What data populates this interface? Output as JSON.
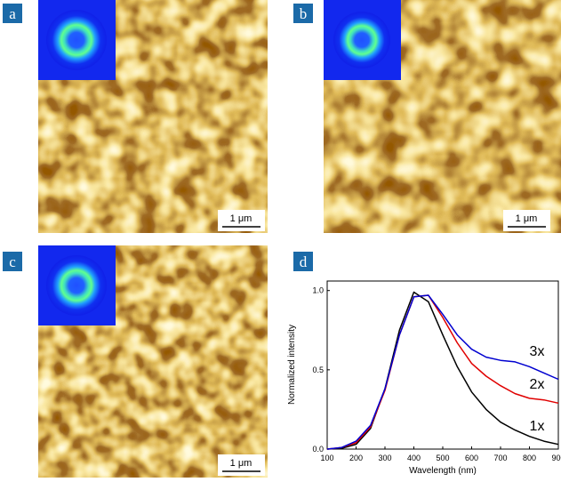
{
  "panels": [
    {
      "label": "a",
      "scale_bar": "1 μm"
    },
    {
      "label": "b",
      "scale_bar": "1 μm"
    },
    {
      "label": "c",
      "scale_bar": "1 μm"
    },
    {
      "label": "d"
    }
  ],
  "chart_data": {
    "type": "line",
    "xlabel": "Wavelength (nm)",
    "ylabel": "Normalized intensity",
    "x": [
      100,
      150,
      200,
      250,
      300,
      350,
      400,
      450,
      500,
      550,
      600,
      650,
      700,
      750,
      800,
      850,
      900
    ],
    "series": [
      {
        "name": "1x",
        "color": "#000000",
        "values": [
          0,
          0.005,
          0.03,
          0.13,
          0.38,
          0.75,
          0.99,
          0.93,
          0.72,
          0.52,
          0.36,
          0.25,
          0.17,
          0.12,
          0.08,
          0.05,
          0.03
        ]
      },
      {
        "name": "2x",
        "color": "#e00000",
        "values": [
          0,
          0.01,
          0.04,
          0.14,
          0.37,
          0.72,
          0.96,
          0.97,
          0.83,
          0.67,
          0.54,
          0.46,
          0.4,
          0.35,
          0.32,
          0.31,
          0.29
        ]
      },
      {
        "name": "3x",
        "color": "#0000d0",
        "values": [
          0,
          0.01,
          0.05,
          0.15,
          0.38,
          0.72,
          0.96,
          0.97,
          0.85,
          0.72,
          0.63,
          0.58,
          0.56,
          0.55,
          0.52,
          0.48,
          0.44
        ]
      }
    ],
    "xlim": [
      100,
      900
    ],
    "ylim": [
      0,
      1.06
    ],
    "xticks": [
      100,
      200,
      300,
      400,
      500,
      600,
      700,
      800,
      900
    ],
    "yticks": [
      {
        "value": 0,
        "label": "0.0"
      },
      0.5,
      {
        "value": 1,
        "label": "1.0"
      }
    ]
  }
}
